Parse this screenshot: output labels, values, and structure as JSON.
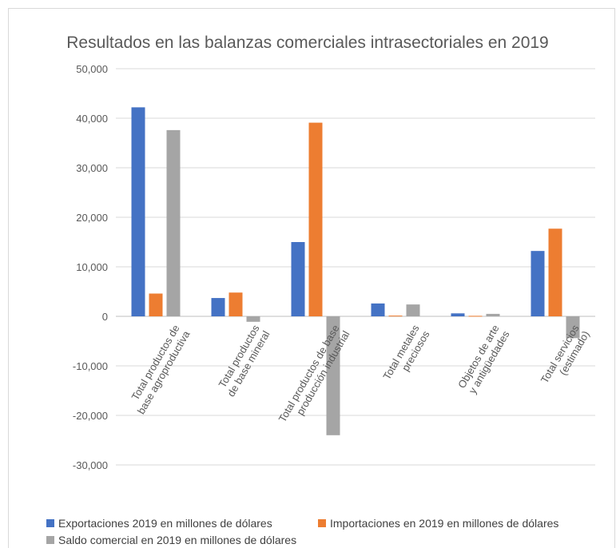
{
  "chart_data": {
    "type": "bar",
    "title": "Resultados en las balanzas comerciales intrasectoriales en 2019",
    "categories": [
      "Total productos de base agroproductiva",
      "Total productos de base mineral",
      "Total productos de base producción industrial",
      "Total metales preciosos",
      "Objetos de arte y antigüedades",
      "Total servicios (estimado)"
    ],
    "series": [
      {
        "name": "Exportaciones 2019 en millones de dólares",
        "color": "#4472c4",
        "values": [
          42200,
          3700,
          15000,
          2600,
          600,
          13200
        ]
      },
      {
        "name": "Importaciones en 2019 en millones de dólares",
        "color": "#ed7d31",
        "values": [
          4600,
          4800,
          39100,
          150,
          100,
          17700
        ]
      },
      {
        "name": "Saldo comercial en 2019 en millones de dólares",
        "color": "#a5a5a5",
        "values": [
          37600,
          -1100,
          -24000,
          2400,
          500,
          -4400
        ]
      }
    ],
    "ylim": [
      -30000,
      50000
    ],
    "yticks": [
      "-30,000",
      "-20,000",
      "-10,000",
      "0",
      "10,000",
      "20,000",
      "30,000",
      "40,000",
      "50,000"
    ],
    "grid": true,
    "legend_position": "bottom"
  }
}
